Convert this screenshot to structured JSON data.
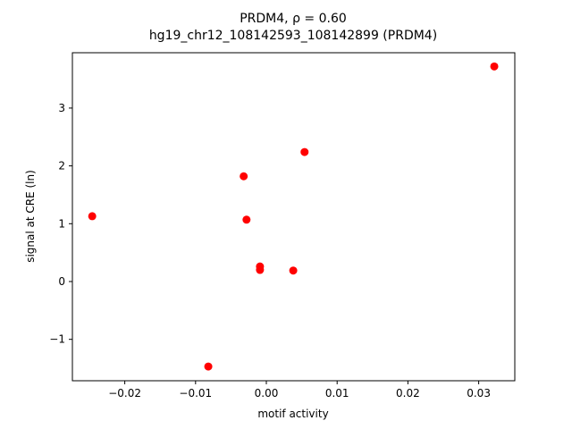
{
  "chart_data": {
    "type": "scatter",
    "title": "PRDM4, ρ = 0.60",
    "subtitle": "hg19_chr12_108142593_108142899 (PRDM4)",
    "x_label": "motif activity",
    "y_label": "signal at CRE (ln)",
    "series": [
      {
        "color": "#ff0000",
        "x": [
          -0.0246,
          -0.0082,
          -0.0032,
          -0.0028,
          -0.0009,
          -0.0009,
          0.0038,
          0.0054,
          0.0322
        ],
        "values": [
          1.13,
          -1.47,
          1.82,
          1.07,
          0.26,
          0.2,
          0.19,
          2.24,
          3.72
        ]
      }
    ],
    "xlim": [
      -0.0274,
      0.0351
    ],
    "ylim": [
      -1.716,
      3.957
    ],
    "xticks": [
      {
        "value": -0.02,
        "label": "−0.02"
      },
      {
        "value": -0.01,
        "label": "−0.01"
      },
      {
        "value": 0,
        "label": "0.00"
      },
      0.01,
      0.02,
      0.03
    ],
    "yticks": [
      {
        "value": -1,
        "label": "−1"
      },
      0,
      1,
      2,
      3
    ]
  }
}
